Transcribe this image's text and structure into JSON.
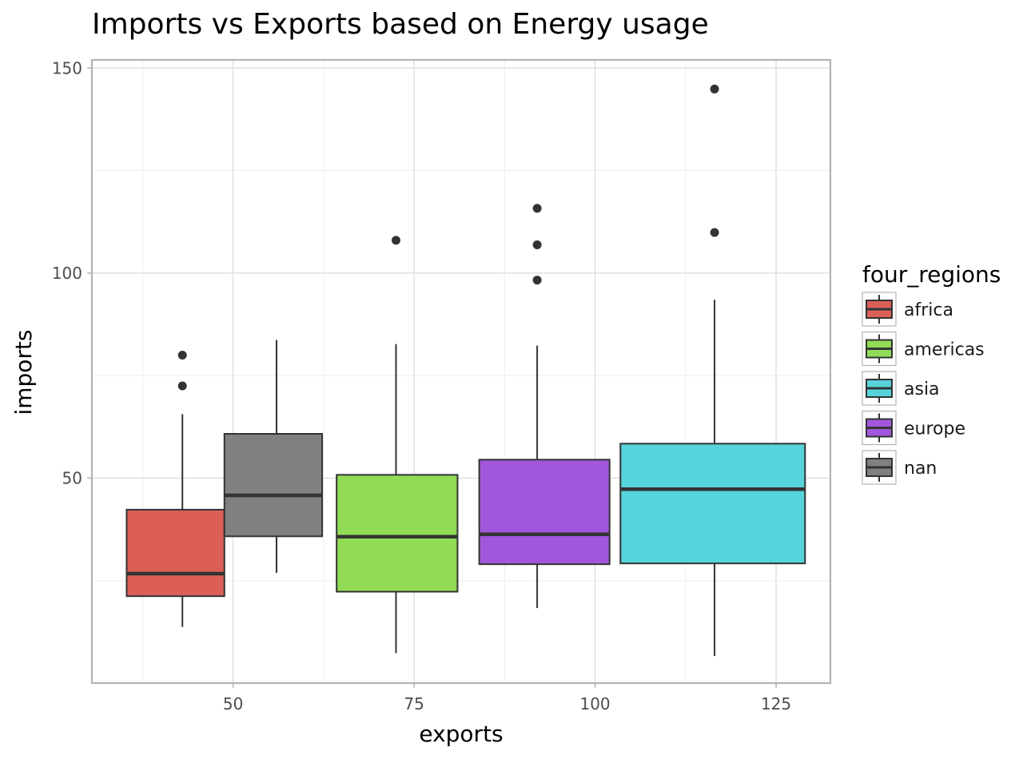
{
  "chart_data": {
    "type": "boxplot",
    "title": "Imports vs Exports based on Energy usage",
    "xlabel": "exports",
    "ylabel": "imports",
    "xlim": [
      30.5,
      132.5
    ],
    "ylim": [
      0,
      152
    ],
    "x_ticks": [
      50,
      75,
      100,
      125
    ],
    "y_ticks": [
      50,
      100,
      150
    ],
    "grid": true,
    "legend": {
      "title": "four_regions",
      "position": "right",
      "entries": [
        {
          "label": "africa",
          "color": "#db5f57"
        },
        {
          "label": "americas",
          "color": "#91db57"
        },
        {
          "label": "asia",
          "color": "#57d3db"
        },
        {
          "label": "europe",
          "color": "#a157db"
        },
        {
          "label": "nan",
          "color": "#808080"
        }
      ]
    },
    "boxes": [
      {
        "group": "africa",
        "color": "#db5f57",
        "x_min": 35.3,
        "x_max": 48.8,
        "x_center": 43.0,
        "whisker_low": 13.7,
        "q1": 21.2,
        "median": 26.7,
        "q3": 42.3,
        "whisker_high": 65.6,
        "outliers": [
          72.5,
          80.0
        ]
      },
      {
        "group": "nan",
        "color": "#808080",
        "x_min": 48.8,
        "x_max": 62.3,
        "x_center": 56.0,
        "whisker_low": 26.9,
        "q1": 35.8,
        "median": 45.8,
        "q3": 60.8,
        "whisker_high": 83.7,
        "outliers": []
      },
      {
        "group": "americas",
        "color": "#91db57",
        "x_min": 64.3,
        "x_max": 81.0,
        "x_center": 72.5,
        "whisker_low": 7.3,
        "q1": 22.3,
        "median": 35.7,
        "q3": 50.8,
        "whisker_high": 82.7,
        "outliers": [
          108.0
        ]
      },
      {
        "group": "europe",
        "color": "#a157db",
        "x_min": 84.0,
        "x_max": 102.0,
        "x_center": 92.0,
        "whisker_low": 18.3,
        "q1": 29.0,
        "median": 36.3,
        "q3": 54.5,
        "whisker_high": 82.3,
        "outliers": [
          98.3,
          106.9,
          115.8
        ]
      },
      {
        "group": "asia",
        "color": "#57d3db",
        "x_min": 103.5,
        "x_max": 129.0,
        "x_center": 116.5,
        "whisker_low": 6.6,
        "q1": 29.2,
        "median": 47.3,
        "q3": 58.4,
        "whisker_high": 93.5,
        "outliers": [
          109.9,
          144.9
        ]
      }
    ]
  }
}
